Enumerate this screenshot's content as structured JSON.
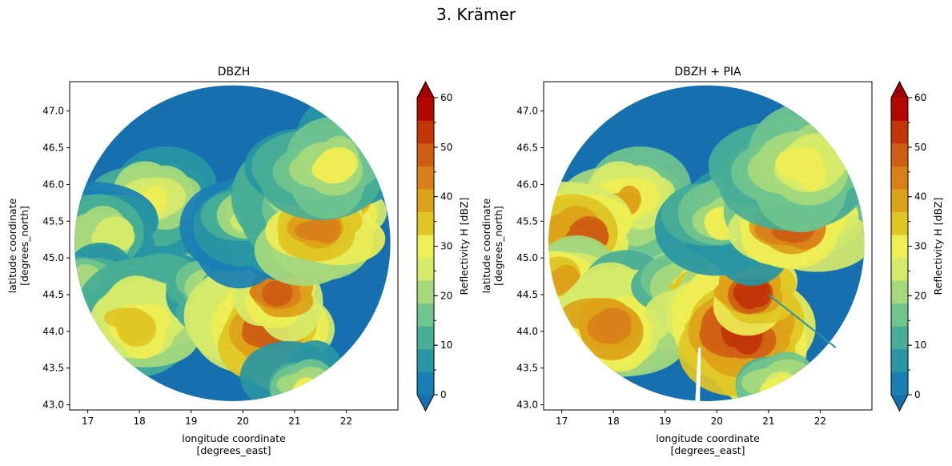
{
  "suptitle": "3. Krämer",
  "chart_data": [
    {
      "type": "heatmap",
      "title": "DBZH",
      "xlabel": "longitude coordinate\n[degrees_east]",
      "ylabel": "latitude coordinate\n[degrees_north]",
      "xlim": [
        16.65,
        23.0
      ],
      "ylim": [
        42.93,
        47.4
      ],
      "xticks": [
        17,
        18,
        19,
        20,
        21,
        22
      ],
      "yticks": [
        43.0,
        43.5,
        44.0,
        44.5,
        45.0,
        45.5,
        46.0,
        46.5,
        47.0
      ],
      "radar_center": [
        19.8,
        45.2
      ],
      "radar_radius_deg_lat": 2.15,
      "colorbar": {
        "label": "Reflectivity H [dBZ]",
        "ticks": [
          0,
          10,
          20,
          30,
          40,
          50,
          60
        ],
        "levels": [
          0,
          5,
          10,
          15,
          20,
          25,
          30,
          35,
          40,
          45,
          50,
          55,
          60
        ],
        "colors": [
          "#1a7fb4",
          "#2896a3",
          "#48ae96",
          "#70c48e",
          "#a6d97c",
          "#d6ea6a",
          "#eeee55",
          "#e0c624",
          "#dca218",
          "#d8801a",
          "#ce5e12",
          "#c23508",
          "#b20800"
        ],
        "extend": "both",
        "under_color": "#1670b0",
        "over_color": "#a00000"
      },
      "echo_cells": [
        {
          "lon": 18.6,
          "lat": 45.4,
          "dbz": 34
        },
        {
          "lon": 18.2,
          "lat": 45.75,
          "dbz": 32
        },
        {
          "lon": 17.4,
          "lat": 45.3,
          "dbz": 26
        },
        {
          "lon": 17.0,
          "lat": 44.7,
          "dbz": 24
        },
        {
          "lon": 18.3,
          "lat": 44.3,
          "dbz": 30
        },
        {
          "lon": 17.9,
          "lat": 44.1,
          "dbz": 38
        },
        {
          "lon": 19.4,
          "lat": 44.6,
          "dbz": 30
        },
        {
          "lon": 19.9,
          "lat": 44.3,
          "dbz": 36
        },
        {
          "lon": 20.5,
          "lat": 44.0,
          "dbz": 50
        },
        {
          "lon": 20.7,
          "lat": 44.55,
          "dbz": 52
        },
        {
          "lon": 20.2,
          "lat": 45.5,
          "dbz": 26
        },
        {
          "lon": 21.5,
          "lat": 45.9,
          "dbz": 36
        },
        {
          "lon": 21.9,
          "lat": 45.75,
          "dbz": 50
        },
        {
          "lon": 21.5,
          "lat": 45.35,
          "dbz": 48
        },
        {
          "lon": 21.7,
          "lat": 46.2,
          "dbz": 30
        },
        {
          "lon": 21.2,
          "lat": 43.2,
          "dbz": 30
        }
      ]
    },
    {
      "type": "heatmap",
      "title": "DBZH + PIA",
      "xlabel": "longitude coordinate\n[degrees_east]",
      "ylabel": "latitude coordinate\n[degrees_north]",
      "xlim": [
        16.65,
        23.0
      ],
      "ylim": [
        42.93,
        47.4
      ],
      "xticks": [
        17,
        18,
        19,
        20,
        21,
        22
      ],
      "yticks": [
        43.0,
        43.5,
        44.0,
        44.5,
        45.0,
        45.5,
        46.0,
        46.5,
        47.0
      ],
      "radar_center": [
        19.8,
        45.2
      ],
      "radar_radius_deg_lat": 2.15,
      "colorbar": {
        "label": "Reflectivity H [dBZ]",
        "ticks": [
          0,
          10,
          20,
          30,
          40,
          50,
          60
        ],
        "levels": [
          0,
          5,
          10,
          15,
          20,
          25,
          30,
          35,
          40,
          45,
          50,
          55,
          60
        ],
        "colors": [
          "#1a7fb4",
          "#2896a3",
          "#48ae96",
          "#70c48e",
          "#a6d97c",
          "#d6ea6a",
          "#eeee55",
          "#e0c624",
          "#dca218",
          "#d8801a",
          "#ce5e12",
          "#c23508",
          "#b20800"
        ],
        "extend": "both",
        "under_color": "#1670b0",
        "over_color": "#a00000"
      },
      "echo_cells": [
        {
          "lon": 18.6,
          "lat": 45.4,
          "dbz": 42
        },
        {
          "lon": 18.2,
          "lat": 45.75,
          "dbz": 40
        },
        {
          "lon": 17.4,
          "lat": 45.3,
          "dbz": 50
        },
        {
          "lon": 17.0,
          "lat": 44.7,
          "dbz": 44
        },
        {
          "lon": 18.3,
          "lat": 44.3,
          "dbz": 36
        },
        {
          "lon": 17.9,
          "lat": 44.1,
          "dbz": 46
        },
        {
          "lon": 19.4,
          "lat": 44.6,
          "dbz": 36
        },
        {
          "lon": 19.9,
          "lat": 44.3,
          "dbz": 44
        },
        {
          "lon": 20.5,
          "lat": 44.0,
          "dbz": 56
        },
        {
          "lon": 20.7,
          "lat": 44.55,
          "dbz": 56
        },
        {
          "lon": 20.2,
          "lat": 45.5,
          "dbz": 30
        },
        {
          "lon": 21.5,
          "lat": 45.9,
          "dbz": 40
        },
        {
          "lon": 21.9,
          "lat": 45.75,
          "dbz": 54
        },
        {
          "lon": 21.5,
          "lat": 45.35,
          "dbz": 52
        },
        {
          "lon": 21.7,
          "lat": 46.2,
          "dbz": 34
        },
        {
          "lon": 21.2,
          "lat": 43.2,
          "dbz": 34
        }
      ]
    }
  ]
}
